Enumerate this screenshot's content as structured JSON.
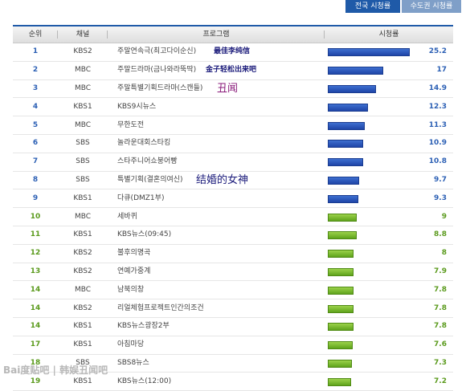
{
  "tabs": [
    {
      "label": "전국 시청률",
      "active": true
    },
    {
      "label": "수도권 시청률",
      "active": false
    }
  ],
  "columns": [
    "순위",
    "채널",
    "프로그램",
    "시청률"
  ],
  "rows": [
    {
      "rank": "1",
      "channel": "KBS2",
      "program": "주말연속극(최고다이순신)",
      "annotation": "最佳李纯信",
      "rating": "25.2",
      "value": 25.2,
      "color": "blue"
    },
    {
      "rank": "2",
      "channel": "MBC",
      "program": "주말드라마(금나와라뚝딱)",
      "annotation": "金子轻松出来吧",
      "rating": "17",
      "value": 17,
      "color": "blue"
    },
    {
      "rank": "3",
      "channel": "MBC",
      "program": "주말특별기획드라마(스캔들)",
      "annotation": "丑闻",
      "rating": "14.9",
      "value": 14.9,
      "color": "blue"
    },
    {
      "rank": "4",
      "channel": "KBS1",
      "program": "KBS9시뉴스",
      "annotation": "",
      "rating": "12.3",
      "value": 12.3,
      "color": "blue"
    },
    {
      "rank": "5",
      "channel": "MBC",
      "program": "무한도전",
      "annotation": "",
      "rating": "11.3",
      "value": 11.3,
      "color": "blue"
    },
    {
      "rank": "6",
      "channel": "SBS",
      "program": "놀라운대회스타킹",
      "annotation": "",
      "rating": "10.9",
      "value": 10.9,
      "color": "blue"
    },
    {
      "rank": "7",
      "channel": "SBS",
      "program": "스타주니어쇼붕어빵",
      "annotation": "",
      "rating": "10.8",
      "value": 10.8,
      "color": "blue"
    },
    {
      "rank": "8",
      "channel": "SBS",
      "program": "특별기획(결혼의여신)",
      "annotation": "结婚的女神",
      "rating": "9.7",
      "value": 9.7,
      "color": "blue"
    },
    {
      "rank": "9",
      "channel": "KBS1",
      "program": "다큐(DMZ1부)",
      "annotation": "",
      "rating": "9.3",
      "value": 9.3,
      "color": "blue"
    },
    {
      "rank": "10",
      "channel": "MBC",
      "program": "세바퀴",
      "annotation": "",
      "rating": "9",
      "value": 9,
      "color": "green"
    },
    {
      "rank": "11",
      "channel": "KBS1",
      "program": "KBS뉴스(09:45)",
      "annotation": "",
      "rating": "8.8",
      "value": 8.8,
      "color": "green"
    },
    {
      "rank": "12",
      "channel": "KBS2",
      "program": "불후의명곡",
      "annotation": "",
      "rating": "8",
      "value": 8,
      "color": "green"
    },
    {
      "rank": "13",
      "channel": "KBS2",
      "program": "연예가중계",
      "annotation": "",
      "rating": "7.9",
      "value": 7.9,
      "color": "green"
    },
    {
      "rank": "14",
      "channel": "MBC",
      "program": "남북의창",
      "annotation": "",
      "rating": "7.8",
      "value": 7.8,
      "color": "green"
    },
    {
      "rank": "14",
      "channel": "KBS2",
      "program": "리얼체험프로젝트인간의조건",
      "annotation": "",
      "rating": "7.8",
      "value": 7.8,
      "color": "green"
    },
    {
      "rank": "14",
      "channel": "KBS1",
      "program": "KBS뉴스광장2부",
      "annotation": "",
      "rating": "7.8",
      "value": 7.8,
      "color": "green"
    },
    {
      "rank": "17",
      "channel": "KBS1",
      "program": "아침마당",
      "annotation": "",
      "rating": "7.6",
      "value": 7.6,
      "color": "green"
    },
    {
      "rank": "18",
      "channel": "SBS",
      "program": "SBS8뉴스",
      "annotation": "",
      "rating": "7.3",
      "value": 7.3,
      "color": "green"
    },
    {
      "rank": "19",
      "channel": "KBS1",
      "program": "KBS뉴스(12:00)",
      "annotation": "",
      "rating": "7.2",
      "value": 7.2,
      "color": "green"
    }
  ],
  "bar_max": 25.2,
  "watermark": "Bai度贴吧 | 韩娱丑闻吧"
}
